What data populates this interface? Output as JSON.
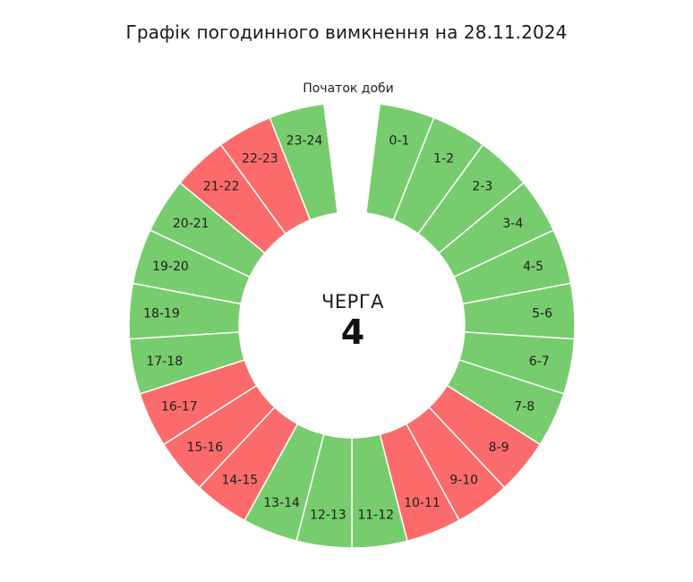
{
  "page": {
    "title": "Графік погодинного вимкнення на 28.11.2024"
  },
  "center": {
    "label": "ЧЕРГА",
    "queue_number": "4"
  },
  "start_marker": "Початок доби",
  "colors": {
    "on": "#77CC6D",
    "off": "#FC6B6B",
    "separator": "#ffffff"
  },
  "chart_data": {
    "type": "pie",
    "variant": "donut",
    "title": "Графік погодинного вимкнення на 28.11.2024",
    "center_text": [
      "ЧЕРГА",
      "4"
    ],
    "annotation": "Початок доби",
    "slots_total": 25,
    "gap_slot": "top (start of day)",
    "direction": "clockwise from top",
    "legend": {
      "on": "green = electricity available",
      "off": "red = scheduled outage"
    },
    "categories": [
      "0-1",
      "1-2",
      "2-3",
      "3-4",
      "4-5",
      "5-6",
      "6-7",
      "7-8",
      "8-9",
      "9-10",
      "10-11",
      "11-12",
      "12-13",
      "13-14",
      "14-15",
      "15-16",
      "16-17",
      "17-18",
      "18-19",
      "19-20",
      "20-21",
      "21-22",
      "22-23",
      "23-24"
    ],
    "values": [
      1,
      1,
      1,
      1,
      1,
      1,
      1,
      1,
      1,
      1,
      1,
      1,
      1,
      1,
      1,
      1,
      1,
      1,
      1,
      1,
      1,
      1,
      1,
      1
    ],
    "status": [
      "on",
      "on",
      "on",
      "on",
      "on",
      "on",
      "on",
      "on",
      "off",
      "off",
      "off",
      "on",
      "on",
      "on",
      "off",
      "off",
      "off",
      "on",
      "on",
      "on",
      "on",
      "off",
      "off",
      "on"
    ]
  }
}
